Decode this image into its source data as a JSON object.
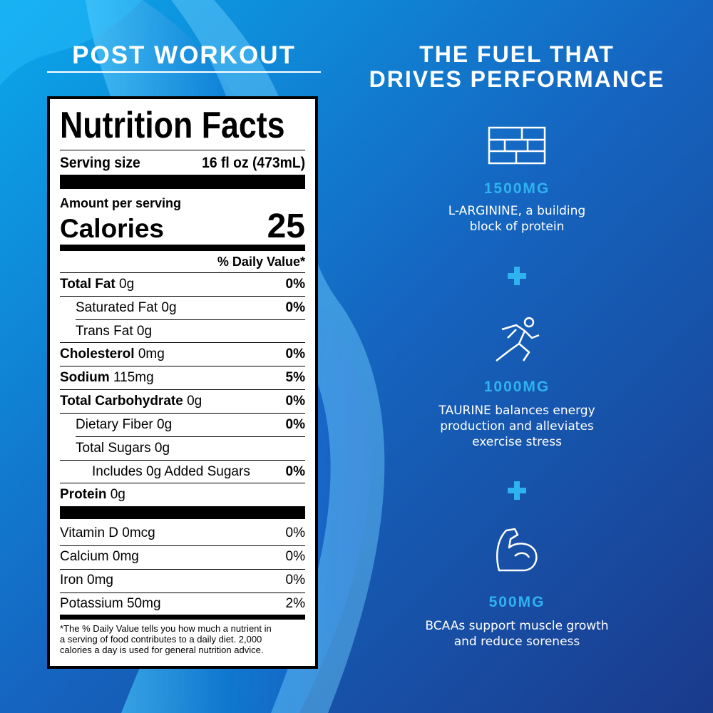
{
  "header": {
    "title": "POST WORKOUT"
  },
  "nutrition_facts": {
    "title": "Nutrition Facts",
    "serving_size": {
      "label": "Serving size",
      "value": "16 fl oz (473mL)"
    },
    "amount_per_serving": "Amount per serving",
    "calories": {
      "label": "Calories",
      "value": 25
    },
    "daily_value_header": "% Daily Value*",
    "rows": [
      {
        "name": "Total Fat",
        "amount": "0g",
        "dv": "0%"
      },
      {
        "name": "Saturated Fat",
        "amount": "0g",
        "dv": "0%"
      },
      {
        "name": "Trans Fat",
        "amount": "0g"
      },
      {
        "name": "Cholesterol",
        "amount": "0mg",
        "dv": "0%"
      },
      {
        "name": "Sodium",
        "amount": "115mg",
        "dv": "5%"
      },
      {
        "name": "Total Carbohydrate",
        "amount": "0g",
        "dv": "0%"
      },
      {
        "name": "Dietary Fiber",
        "amount": "0g",
        "dv": "0%"
      },
      {
        "name": "Total Sugars",
        "amount": "0g"
      },
      {
        "name": "Includes 0g Added Sugars",
        "dv": "0%"
      },
      {
        "name": "Protein",
        "amount": "0g"
      }
    ],
    "vitamins": [
      {
        "name": "Vitamin D 0mcg",
        "dv": "0%"
      },
      {
        "name": "Calcium 0mg",
        "dv": "0%"
      },
      {
        "name": "Iron 0mg",
        "dv": "0%"
      },
      {
        "name": "Potassium 50mg",
        "dv": "2%"
      }
    ],
    "footnote_lines": [
      "*The % Daily Value tells you how much a nutrient in",
      "a serving of food contributes to a daily diet. 2,000",
      "calories a day is used for general nutrition advice."
    ]
  },
  "benefits": {
    "title_lines": [
      "THE FUEL THAT",
      "DRIVES PERFORMANCE"
    ],
    "items": [
      {
        "amount": "1500MG",
        "description_lines": [
          "L-ARGININE, a building",
          "block of protein"
        ]
      },
      {
        "amount": "1000MG",
        "description_lines": [
          "TAURINE balances energy",
          "production and alleviates",
          "exercise stress"
        ]
      },
      {
        "amount": "500MG",
        "description_lines": [
          "BCAAs support muscle growth",
          "and reduce soreness"
        ]
      }
    ]
  }
}
